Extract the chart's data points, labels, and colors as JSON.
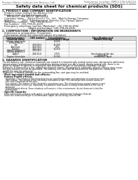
{
  "header_left": "Product Name: Lithium Ion Battery Cell",
  "header_right_line1": "Substance number: MM1177A-000010",
  "header_right_line2": "Established / Revision: Dec.7.2010",
  "main_title": "Safety data sheet for chemical products (SDS)",
  "section1_title": "1. PRODUCT AND COMPANY IDENTIFICATION",
  "s1_items": [
    "· Product name: Lithium Ion Battery Cell",
    "· Product code: Cylindrical-type cell",
    "     MM-86501, MM-86502, MM-86504",
    "· Company name:    Sanyo Electric Co., Ltd.,  Mobile Energy Company",
    "· Address:         2001  Kamikamawari, Sumoto-City, Hyogo, Japan",
    "· Telephone number:   +81-799-26-4111",
    "· Fax number:  +81-799-26-4129",
    "· Emergency telephone number (Weekday): +81-799-26-3942",
    "                                 (Night and holiday): +81-799-26-4101"
  ],
  "section2_title": "2. COMPOSITION / INFORMATION ON INGREDIENTS",
  "s2_intro": "· Substance or preparation: Preparation",
  "s2_table_intro": "· Information about the chemical nature of product:",
  "table_headers": [
    "Common name /\nChemical name",
    "CAS number",
    "Concentration /\nConcentration range",
    "Classification and\nhazard labeling"
  ],
  "table_rows": [
    [
      "Lithium cobalt oxide\n(LiMnO2/MnO2)",
      "-",
      "30-60%",
      "-"
    ],
    [
      "Iron",
      "7439-89-6",
      "15-25%",
      "-"
    ],
    [
      "Aluminum",
      "7429-90-5",
      "2-5%",
      "-"
    ],
    [
      "Graphite\n(Mold in graphite-I)\n(All film graphite-I)",
      "7782-42-5\n7782-42-5",
      "10-25%",
      "-"
    ],
    [
      "Copper",
      "7440-50-8",
      "5-15%",
      "Sensitization of the skin\ngroup No.2"
    ],
    [
      "Organic electrolyte",
      "-",
      "10-20%",
      "Inflammable liquid"
    ]
  ],
  "section3_title": "3. HAZARDS IDENTIFICATION",
  "s3_para1": [
    "For the battery cell, chemical materials are stored in a hermetically sealed metal case, designed to withstand",
    "temperatures and pressures-concentrations during normal use. As a result, during normal use, there is no",
    "physical danger of ignition or aspiration and therefore danger of hazardous materials leakage.",
    "However, if exposed to a fire, added mechanical shocks, decomposed, arbitrarily altered, misuse may cause",
    "the gas release cannot be operated. The battery cell case will be breached or fire-patterns, hazardous",
    "materials may be released.",
    "Moreover, if heated strongly by the surrounding fire, soot gas may be emitted."
  ],
  "s3_bullet1": "· Most important hazard and effects:",
  "s3_human": "Human health effects:",
  "s3_human_items": [
    "Inhalation: The release of the electrolyte has an anesthesia action and stimulates to respiratory tract.",
    "Skin contact: The release of the electrolyte stimulates a skin. The electrolyte skin contact causes a",
    "sore and stimulation on the skin.",
    "Eye contact: The release of the electrolyte stimulates eyes. The electrolyte eye contact causes a sore",
    "and stimulation on the eye. Especially, a substance that causes a strong inflammation of the eye is",
    "contained.",
    "Environmental effects: Since a battery cell remains in the environment, do not throw out it into the",
    "environment."
  ],
  "s3_bullet2": "· Specific hazards:",
  "s3_specific": [
    "If the electrolyte contacts with water, it will generate detrimental hydrogen fluoride.",
    "Since the used electrolyte is inflammable liquid, do not bring close to fire."
  ],
  "bg_color": "#ffffff"
}
